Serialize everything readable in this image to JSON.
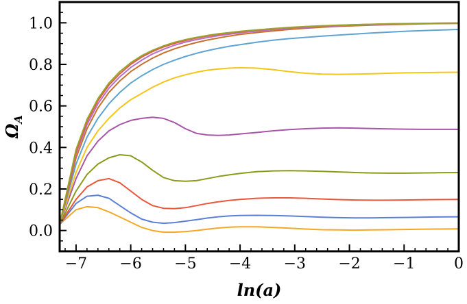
{
  "chart_data": {
    "type": "line",
    "title": "",
    "xlabel": "ln(a)",
    "ylabel_main": "Ω",
    "ylabel_sub": "A",
    "xlim": [
      -7.3,
      0
    ],
    "ylim": [
      -0.1,
      1.1
    ],
    "xticks": [
      -7,
      -6,
      -5,
      -4,
      -3,
      -2,
      -1,
      0
    ],
    "xtick_labels": [
      "−7",
      "−6",
      "−5",
      "−4",
      "−3",
      "−2",
      "−1",
      "0"
    ],
    "yticks": [
      0.0,
      0.2,
      0.4,
      0.6,
      0.8,
      1.0
    ],
    "ytick_labels": [
      "0.0",
      "0.2",
      "0.4",
      "0.6",
      "0.8",
      "1.0"
    ],
    "grid": false,
    "series": [
      {
        "color": "#f5a623",
        "x": [
          -7.3,
          -7.0,
          -6.8,
          -6.6,
          -6.4,
          -6.2,
          -6.0,
          -5.8,
          -5.6,
          -5.4,
          -5.2,
          -5.0,
          -4.8,
          -4.6,
          -4.4,
          -4.2,
          -4.0,
          -3.7,
          -3.4,
          -3.1,
          -2.8,
          -2.5,
          -2.2,
          -1.9,
          -1.6,
          -1.3,
          -1.0,
          -0.7,
          -0.4,
          0
        ],
        "y": [
          0.03,
          0.1,
          0.115,
          0.11,
          0.09,
          0.065,
          0.04,
          0.015,
          0.0,
          -0.008,
          -0.008,
          -0.005,
          0.0,
          0.006,
          0.012,
          0.016,
          0.018,
          0.018,
          0.015,
          0.011,
          0.007,
          0.004,
          0.003,
          0.002,
          0.003,
          0.004,
          0.005,
          0.006,
          0.007,
          0.008
        ]
      },
      {
        "color": "#5b7fd6",
        "x": [
          -7.3,
          -7.0,
          -6.8,
          -6.6,
          -6.4,
          -6.2,
          -6.0,
          -5.8,
          -5.6,
          -5.4,
          -5.2,
          -5.0,
          -4.8,
          -4.6,
          -4.4,
          -4.2,
          -4.0,
          -3.7,
          -3.4,
          -3.1,
          -2.8,
          -2.5,
          -2.2,
          -1.9,
          -1.6,
          -1.3,
          -1.0,
          -0.7,
          -0.4,
          0
        ],
        "y": [
          0.03,
          0.13,
          0.165,
          0.17,
          0.155,
          0.12,
          0.085,
          0.055,
          0.04,
          0.035,
          0.038,
          0.045,
          0.052,
          0.06,
          0.066,
          0.07,
          0.072,
          0.073,
          0.072,
          0.07,
          0.067,
          0.064,
          0.062,
          0.061,
          0.061,
          0.062,
          0.063,
          0.064,
          0.065,
          0.066
        ]
      },
      {
        "color": "#e8573a",
        "x": [
          -7.3,
          -7.0,
          -6.8,
          -6.6,
          -6.4,
          -6.2,
          -6.0,
          -5.8,
          -5.6,
          -5.4,
          -5.2,
          -5.0,
          -4.8,
          -4.6,
          -4.4,
          -4.2,
          -4.0,
          -3.7,
          -3.4,
          -3.1,
          -2.8,
          -2.5,
          -2.2,
          -1.9,
          -1.6,
          -1.3,
          -1.0,
          -0.7,
          -0.4,
          0
        ],
        "y": [
          0.03,
          0.15,
          0.21,
          0.24,
          0.25,
          0.23,
          0.19,
          0.15,
          0.12,
          0.107,
          0.105,
          0.11,
          0.12,
          0.13,
          0.138,
          0.145,
          0.15,
          0.155,
          0.157,
          0.157,
          0.155,
          0.152,
          0.149,
          0.147,
          0.146,
          0.146,
          0.147,
          0.148,
          0.149,
          0.15
        ]
      },
      {
        "color": "#8b9a1a",
        "x": [
          -7.3,
          -7.0,
          -6.8,
          -6.6,
          -6.4,
          -6.2,
          -6.0,
          -5.8,
          -5.6,
          -5.4,
          -5.2,
          -5.0,
          -4.8,
          -4.6,
          -4.4,
          -4.2,
          -4.0,
          -3.7,
          -3.4,
          -3.1,
          -2.8,
          -2.5,
          -2.2,
          -1.9,
          -1.6,
          -1.3,
          -1.0,
          -0.7,
          -0.4,
          0
        ],
        "y": [
          0.03,
          0.19,
          0.27,
          0.32,
          0.35,
          0.365,
          0.36,
          0.33,
          0.29,
          0.255,
          0.24,
          0.237,
          0.24,
          0.25,
          0.26,
          0.268,
          0.275,
          0.283,
          0.287,
          0.288,
          0.287,
          0.285,
          0.282,
          0.279,
          0.277,
          0.276,
          0.276,
          0.277,
          0.278,
          0.279
        ]
      },
      {
        "color": "#a855a8",
        "x": [
          -7.3,
          -7.0,
          -6.8,
          -6.6,
          -6.4,
          -6.2,
          -6.0,
          -5.8,
          -5.6,
          -5.4,
          -5.2,
          -5.0,
          -4.8,
          -4.6,
          -4.4,
          -4.2,
          -4.0,
          -3.7,
          -3.4,
          -3.1,
          -2.8,
          -2.5,
          -2.2,
          -1.9,
          -1.6,
          -1.3,
          -1.0,
          -0.7,
          -0.4,
          0
        ],
        "y": [
          0.03,
          0.25,
          0.36,
          0.43,
          0.48,
          0.51,
          0.53,
          0.54,
          0.545,
          0.54,
          0.52,
          0.49,
          0.468,
          0.46,
          0.458,
          0.46,
          0.465,
          0.472,
          0.48,
          0.486,
          0.49,
          0.493,
          0.494,
          0.493,
          0.491,
          0.489,
          0.488,
          0.487,
          0.487,
          0.487
        ]
      },
      {
        "color": "#f5c518",
        "x": [
          -7.3,
          -7.0,
          -6.8,
          -6.6,
          -6.4,
          -6.2,
          -6.0,
          -5.8,
          -5.6,
          -5.4,
          -5.2,
          -5.0,
          -4.8,
          -4.6,
          -4.4,
          -4.2,
          -4.0,
          -3.7,
          -3.4,
          -3.1,
          -2.8,
          -2.5,
          -2.2,
          -1.9,
          -1.6,
          -1.3,
          -1.0,
          -0.7,
          -0.4,
          0
        ],
        "y": [
          0.03,
          0.28,
          0.4,
          0.48,
          0.54,
          0.59,
          0.63,
          0.66,
          0.69,
          0.715,
          0.735,
          0.75,
          0.762,
          0.772,
          0.778,
          0.782,
          0.784,
          0.782,
          0.775,
          0.765,
          0.757,
          0.753,
          0.752,
          0.753,
          0.755,
          0.757,
          0.759,
          0.76,
          0.761,
          0.762
        ]
      },
      {
        "color": "#5fa3d0",
        "x": [
          -7.3,
          -7.0,
          -6.8,
          -6.6,
          -6.4,
          -6.2,
          -6.0,
          -5.8,
          -5.6,
          -5.4,
          -5.2,
          -5.0,
          -4.8,
          -4.6,
          -4.4,
          -4.2,
          -4.0,
          -3.7,
          -3.4,
          -3.1,
          -2.8,
          -2.5,
          -2.2,
          -1.9,
          -1.6,
          -1.3,
          -1.0,
          -0.7,
          -0.4,
          0
        ],
        "y": [
          0.03,
          0.32,
          0.45,
          0.54,
          0.61,
          0.665,
          0.71,
          0.745,
          0.775,
          0.8,
          0.82,
          0.838,
          0.853,
          0.866,
          0.877,
          0.887,
          0.895,
          0.906,
          0.916,
          0.924,
          0.93,
          0.936,
          0.941,
          0.946,
          0.951,
          0.955,
          0.959,
          0.962,
          0.965,
          0.968
        ]
      },
      {
        "color": "#c8702a",
        "x": [
          -7.3,
          -7.0,
          -6.8,
          -6.6,
          -6.4,
          -6.2,
          -6.0,
          -5.8,
          -5.6,
          -5.4,
          -5.2,
          -5.0,
          -4.8,
          -4.6,
          -4.4,
          -4.2,
          -4.0,
          -3.7,
          -3.4,
          -3.1,
          -2.8,
          -2.5,
          -2.2,
          -1.9,
          -1.6,
          -1.3,
          -1.0,
          -0.7,
          -0.4,
          0
        ],
        "y": [
          0.03,
          0.35,
          0.49,
          0.59,
          0.665,
          0.72,
          0.765,
          0.8,
          0.83,
          0.855,
          0.875,
          0.891,
          0.905,
          0.917,
          0.927,
          0.936,
          0.944,
          0.953,
          0.961,
          0.968,
          0.974,
          0.979,
          0.983,
          0.986,
          0.989,
          0.991,
          0.993,
          0.995,
          0.996,
          0.997
        ]
      },
      {
        "color": "#b86fc8",
        "x": [
          -7.3,
          -7.0,
          -6.8,
          -6.6,
          -6.4,
          -6.2,
          -6.0,
          -5.8,
          -5.6,
          -5.4,
          -5.2,
          -5.0,
          -4.8,
          -4.6,
          -4.4,
          -4.2,
          -4.0,
          -3.7,
          -3.4,
          -3.1,
          -2.8,
          -2.5,
          -2.2,
          -1.9,
          -1.6,
          -1.3,
          -1.0,
          -0.7,
          -0.4,
          0
        ],
        "y": [
          0.03,
          0.37,
          0.51,
          0.61,
          0.685,
          0.74,
          0.785,
          0.82,
          0.85,
          0.873,
          0.892,
          0.907,
          0.919,
          0.929,
          0.938,
          0.945,
          0.952,
          0.96,
          0.967,
          0.973,
          0.978,
          0.982,
          0.986,
          0.989,
          0.991,
          0.993,
          0.995,
          0.996,
          0.997,
          0.998
        ]
      },
      {
        "color": "#e05a47",
        "x": [
          -7.3,
          -7.0,
          -6.8,
          -6.6,
          -6.4,
          -6.2,
          -6.0,
          -5.8,
          -5.6,
          -5.4,
          -5.2,
          -5.0,
          -4.8,
          -4.6,
          -4.4,
          -4.2,
          -4.0,
          -3.7,
          -3.4,
          -3.1,
          -2.8,
          -2.5,
          -2.2,
          -1.9,
          -1.6,
          -1.3,
          -1.0,
          -0.7,
          -0.4,
          0
        ],
        "y": [
          0.03,
          0.38,
          0.525,
          0.625,
          0.7,
          0.755,
          0.8,
          0.835,
          0.862,
          0.884,
          0.901,
          0.915,
          0.927,
          0.936,
          0.944,
          0.951,
          0.957,
          0.965,
          0.971,
          0.977,
          0.981,
          0.985,
          0.988,
          0.991,
          0.993,
          0.995,
          0.996,
          0.997,
          0.998,
          0.999
        ]
      },
      {
        "color": "#9aa32a",
        "x": [
          -7.3,
          -7.0,
          -6.8,
          -6.6,
          -6.4,
          -6.2,
          -6.0,
          -5.8,
          -5.6,
          -5.4,
          -5.2,
          -5.0,
          -4.8,
          -4.6,
          -4.4,
          -4.2,
          -4.0,
          -3.7,
          -3.4,
          -3.1,
          -2.8,
          -2.5,
          -2.2,
          -1.9,
          -1.6,
          -1.3,
          -1.0,
          -0.7,
          -0.4,
          0
        ],
        "y": [
          0.03,
          0.39,
          0.535,
          0.635,
          0.71,
          0.765,
          0.808,
          0.842,
          0.868,
          0.889,
          0.906,
          0.919,
          0.93,
          0.939,
          0.947,
          0.953,
          0.959,
          0.966,
          0.972,
          0.978,
          0.982,
          0.986,
          0.989,
          0.991,
          0.993,
          0.995,
          0.996,
          0.997,
          0.998,
          0.999
        ]
      }
    ]
  }
}
